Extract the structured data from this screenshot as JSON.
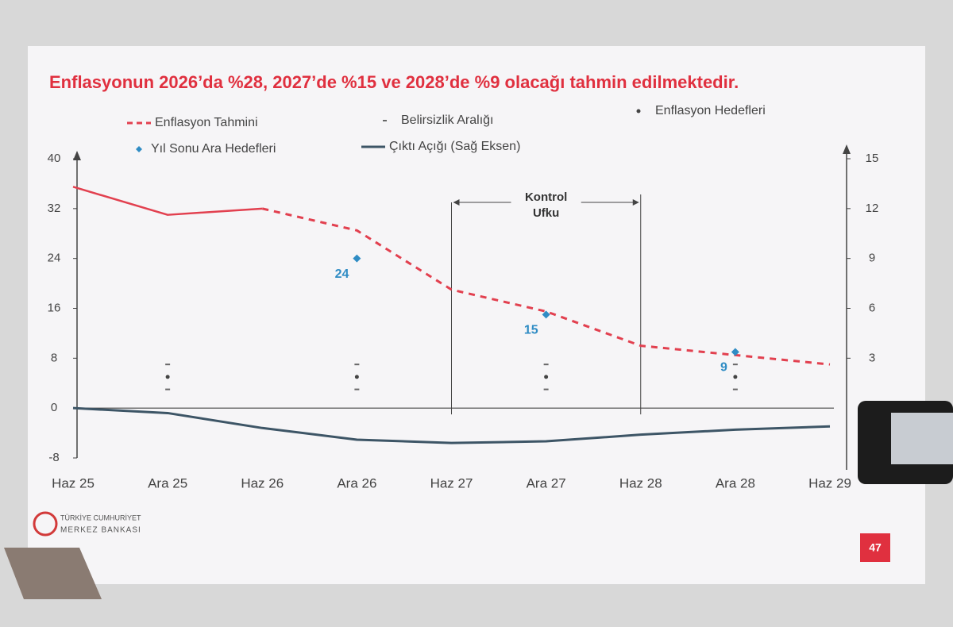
{
  "chart_data": {
    "type": "line",
    "title": "Enflasyonun 2026’da %28, 2027’de %15 ve 2028’de %9 olacağı tahmin edilmektedir.",
    "categories": [
      "Haz 25",
      "Ara 25",
      "Haz 26",
      "Ara 26",
      "Haz 27",
      "Ara 27",
      "Haz 28",
      "Ara 28",
      "Haz 29"
    ],
    "ylim": [
      -8,
      40
    ],
    "yticks": [
      -8,
      0,
      8,
      16,
      24,
      32,
      40
    ],
    "y2lim": [
      -3,
      15
    ],
    "y2ticks": [
      3,
      6,
      9,
      12,
      15
    ],
    "series": [
      {
        "name": "Enflasyon Tahmini",
        "color": "#e2404f",
        "style": "dashed",
        "values": [
          null,
          null,
          32,
          28.5,
          19,
          15.5,
          10,
          8.5,
          7
        ]
      },
      {
        "color": "#e2404f",
        "style": "solid",
        "values": [
          35.5,
          31,
          32,
          null,
          null,
          null,
          null,
          null,
          null
        ]
      },
      {
        "name": "Belirsizlik Aralığı",
        "color": "#666666",
        "style": "range",
        "low": [
          null,
          3,
          null,
          3,
          null,
          3,
          null,
          3,
          null
        ],
        "high": [
          null,
          7,
          null,
          7,
          null,
          7,
          null,
          7,
          null
        ]
      },
      {
        "name": "Enflasyon Hedefleri",
        "color": "#444444",
        "style": "dot",
        "values": [
          null,
          5,
          null,
          5,
          null,
          5,
          null,
          5,
          null
        ]
      },
      {
        "name": "Yıl Sonu Ara Hedefleri",
        "color": "#2f8cc4",
        "style": "diamond",
        "values": [
          null,
          null,
          null,
          24,
          null,
          15,
          null,
          9,
          null
        ]
      },
      {
        "name": "Çıktı Açığı (Sağ Eksen)",
        "color": "#3d5566",
        "style": "solid",
        "axis": "y2",
        "values": [
          0,
          -0.3,
          -1.2,
          -1.9,
          -2.1,
          -2.0,
          -1.6,
          -1.3,
          -1.1
        ]
      }
    ],
    "annotation": {
      "lines": [
        "Kontrol",
        "Ufku"
      ],
      "from": "Haz 27",
      "to": "Haz 28"
    }
  },
  "footer": {
    "org_line1": "TÜRKİYE CUMHURİYET",
    "org_line2": "MERKEZ BANKASI",
    "page_number": "47"
  }
}
